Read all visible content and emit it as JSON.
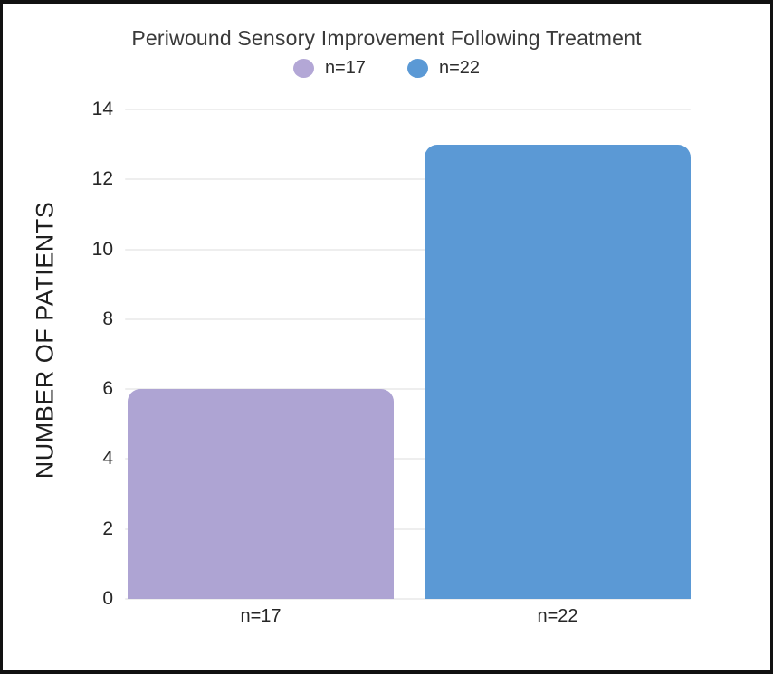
{
  "chart_data": {
    "type": "bar",
    "title": "Periwound Sensory Improvement Following Treatment",
    "ylabel": "NUMBER OF PATIENTS",
    "xlabel": "",
    "ylim": [
      0,
      14
    ],
    "ytick_step": 2,
    "grid": true,
    "legend_position": "top-center",
    "categories": [
      "n=17",
      "n=22"
    ],
    "values": [
      6,
      13
    ],
    "bar_colors": [
      "#aea4d3",
      "#5b99d5"
    ],
    "legend": [
      {
        "label": "n=17",
        "color": "#b3a7d6"
      },
      {
        "label": "n=22",
        "color": "#5b99d5"
      }
    ],
    "colors": {
      "title_text": "#3a3a3a",
      "axis_text": "#262626",
      "gridline": "#eeeeee",
      "background": "#ffffff",
      "frame_border": "#111111"
    }
  }
}
